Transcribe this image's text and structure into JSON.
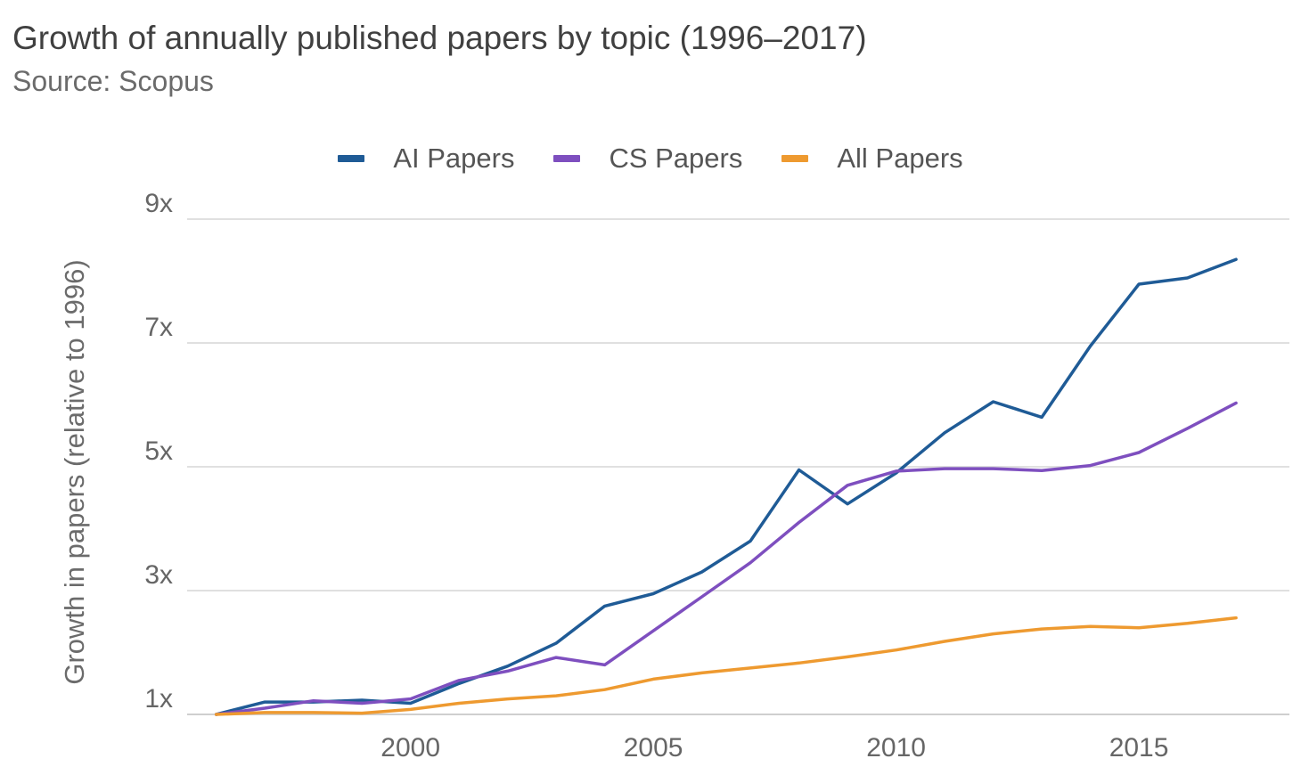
{
  "chart_data": {
    "type": "line",
    "title": "Growth of annually published papers by topic (1996–2017)",
    "subtitle": "Source: Scopus",
    "xlabel": "",
    "ylabel": "Growth in papers (relative to 1996)",
    "x": [
      1996,
      1997,
      1998,
      1999,
      2000,
      2001,
      2002,
      2003,
      2004,
      2005,
      2006,
      2007,
      2008,
      2009,
      2010,
      2011,
      2012,
      2013,
      2014,
      2015,
      2016,
      2017
    ],
    "xticks": [
      2000,
      2005,
      2010,
      2015
    ],
    "xtick_labels": [
      "2000",
      "2005",
      "2010",
      "2015"
    ],
    "yticks": [
      1,
      3,
      5,
      7,
      9
    ],
    "ytick_labels": [
      "1x",
      "3x",
      "5x",
      "7x",
      "9x"
    ],
    "xlim": [
      1995.4,
      2018.1
    ],
    "ylim": [
      1,
      9
    ],
    "grid": true,
    "legend_position": "top-center",
    "series": [
      {
        "name": "AI Papers",
        "color": "#1f5b96",
        "values": [
          1.0,
          1.2,
          1.2,
          1.23,
          1.18,
          1.5,
          1.78,
          2.15,
          2.75,
          2.95,
          3.3,
          3.8,
          4.95,
          4.4,
          4.9,
          5.55,
          6.05,
          5.8,
          6.95,
          7.95,
          8.05,
          8.35
        ]
      },
      {
        "name": "CS Papers",
        "color": "#7e4fbf",
        "values": [
          1.0,
          1.1,
          1.22,
          1.18,
          1.25,
          1.55,
          1.7,
          1.92,
          1.8,
          2.35,
          2.9,
          3.45,
          4.1,
          4.7,
          4.93,
          4.97,
          4.97,
          4.94,
          5.02,
          5.23,
          5.62,
          6.03
        ]
      },
      {
        "name": "All Papers",
        "color": "#ee9a30",
        "values": [
          1.0,
          1.03,
          1.03,
          1.02,
          1.08,
          1.18,
          1.25,
          1.3,
          1.4,
          1.57,
          1.67,
          1.75,
          1.83,
          1.93,
          2.04,
          2.18,
          2.3,
          2.38,
          2.42,
          2.4,
          2.47,
          2.56
        ]
      }
    ]
  }
}
